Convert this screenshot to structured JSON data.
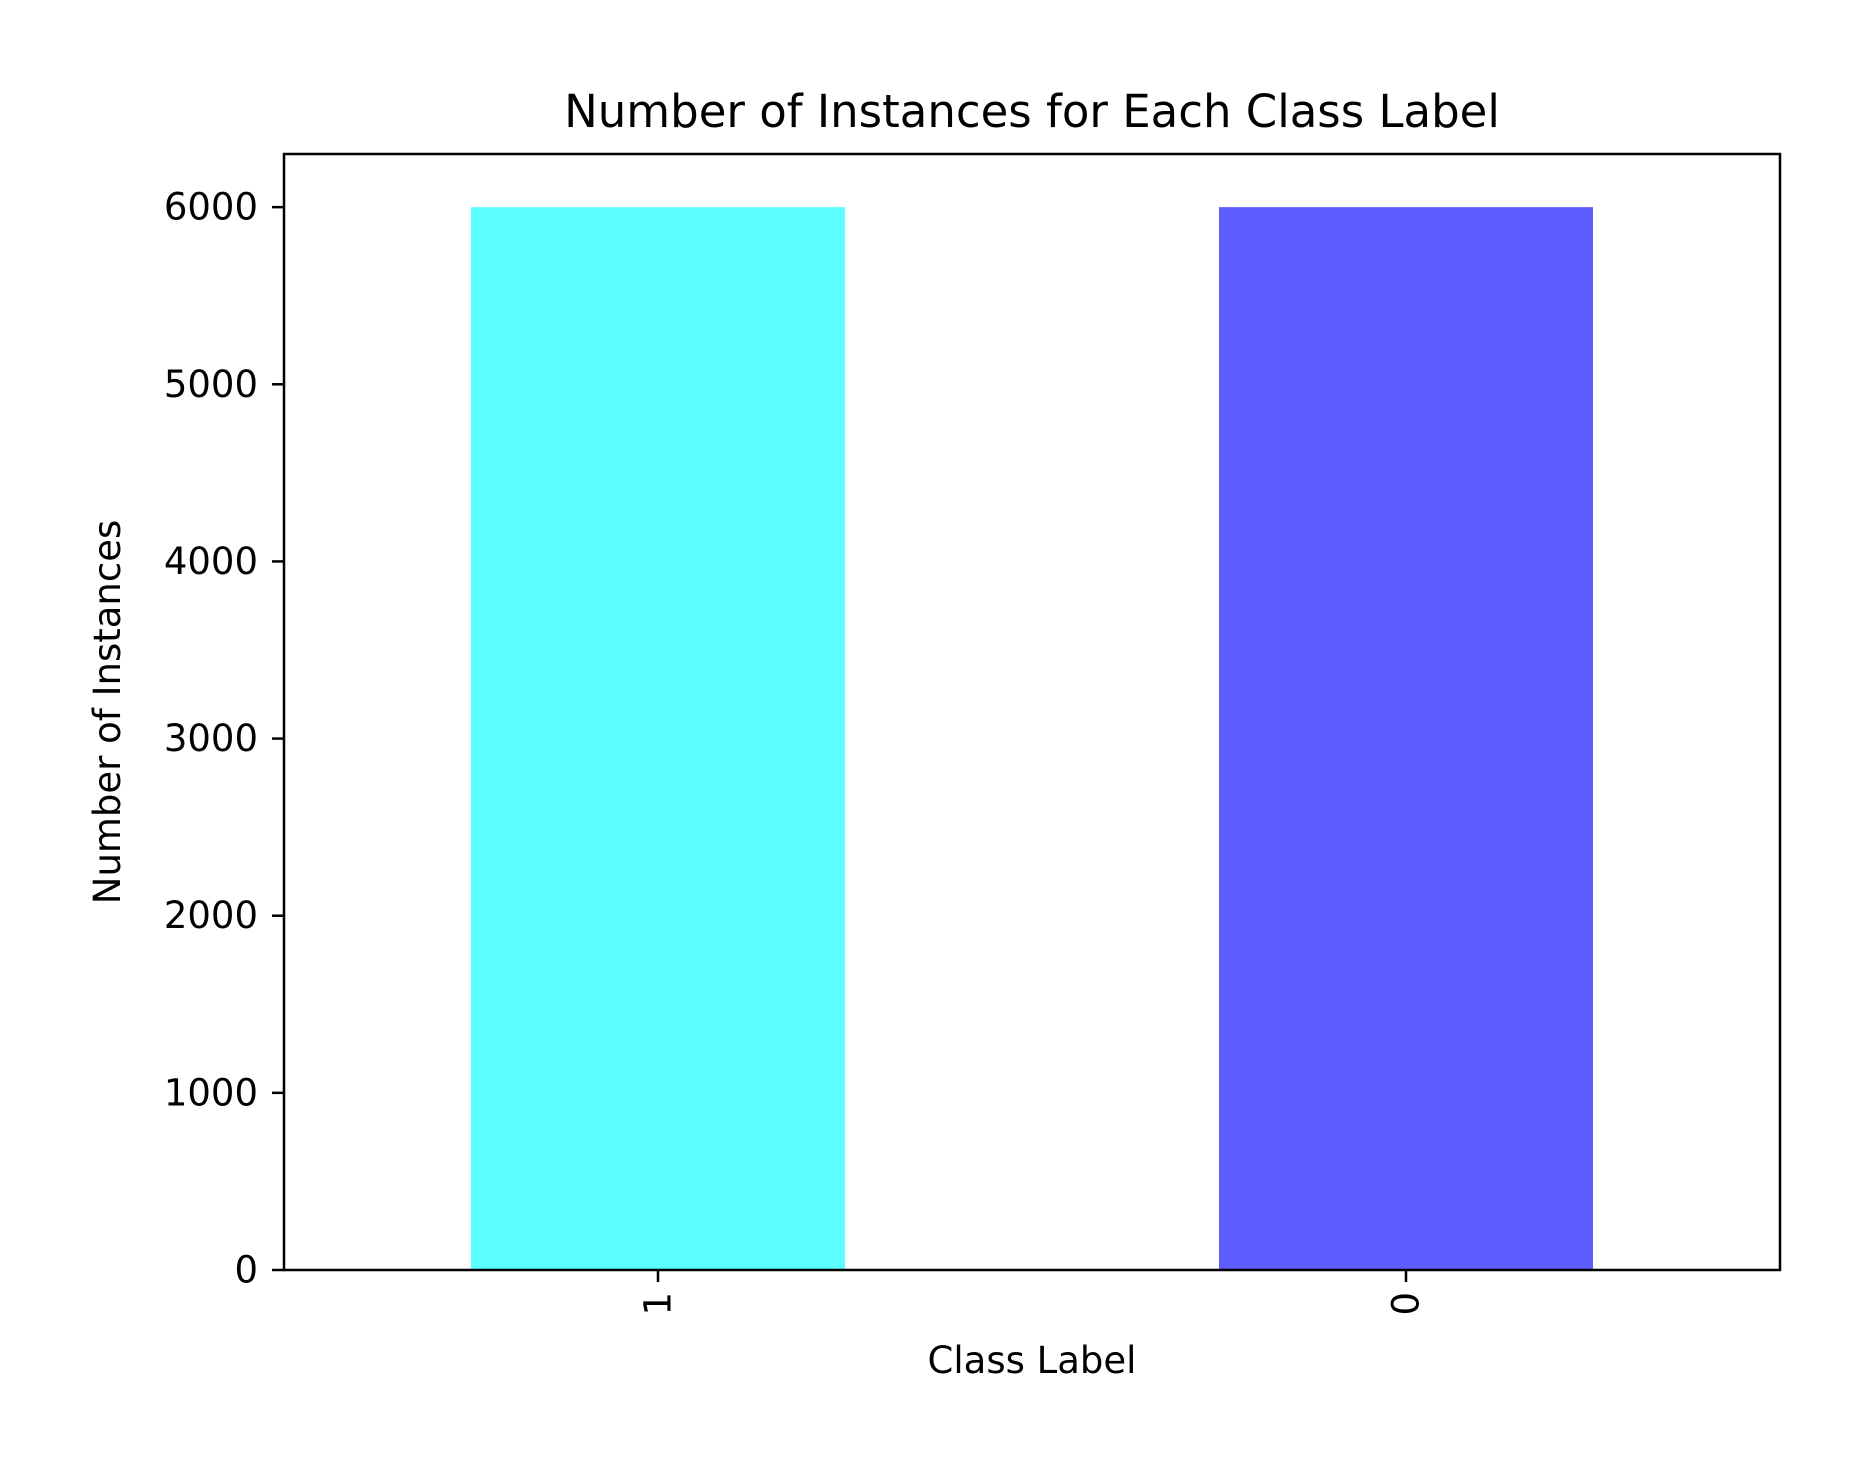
{
  "chart_data": {
    "type": "bar",
    "title": "Number of Instances for Each Class Label",
    "xlabel": "Class Label",
    "ylabel": "Number of Instances",
    "categories": [
      "1",
      "0"
    ],
    "values": [
      6000,
      6000
    ],
    "colors": [
      "#5cffff",
      "#5c5cff"
    ],
    "ylim": [
      0,
      6300
    ],
    "yticks": [
      0,
      1000,
      2000,
      3000,
      4000,
      5000,
      6000
    ],
    "ytick_labels": [
      "0",
      "1000",
      "2000",
      "3000",
      "4000",
      "5000",
      "6000"
    ],
    "xtick_rotation": "vertical",
    "grid": false,
    "legend": "none"
  }
}
